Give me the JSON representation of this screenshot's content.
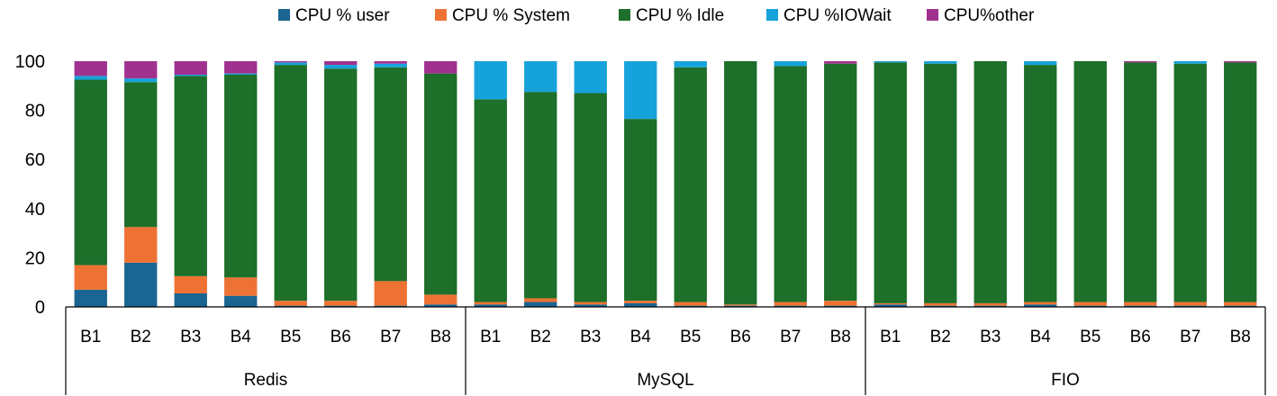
{
  "chart_data": {
    "type": "bar",
    "stacked": true,
    "title": "",
    "xlabel": "",
    "ylabel": "",
    "ylim": [
      0,
      100
    ],
    "yticks": [
      0,
      20,
      40,
      60,
      80,
      100
    ],
    "grid": false,
    "legend_position": "top",
    "groups": [
      {
        "name": "Redis",
        "categories": [
          "B1",
          "B2",
          "B3",
          "B4",
          "B5",
          "B6",
          "B7",
          "B8"
        ]
      },
      {
        "name": "MySQL",
        "categories": [
          "B1",
          "B2",
          "B3",
          "B4",
          "B5",
          "B6",
          "B7",
          "B8"
        ]
      },
      {
        "name": "FIO",
        "categories": [
          "B1",
          "B2",
          "B3",
          "B4",
          "B5",
          "B6",
          "B7",
          "B8"
        ]
      }
    ],
    "series": [
      {
        "name": "CPU % user",
        "color": "#1b6592",
        "values": [
          7,
          18,
          5.5,
          4.5,
          0.5,
          0.5,
          0.5,
          1,
          1,
          2,
          1,
          1.5,
          0.5,
          0.5,
          0.5,
          0.5,
          1,
          0.5,
          0.5,
          1,
          0.5,
          0.5,
          0.5,
          0.5
        ]
      },
      {
        "name": "CPU % System",
        "color": "#ee7233",
        "values": [
          10,
          14.5,
          7,
          7.5,
          2,
          2,
          10,
          4,
          1,
          1.5,
          1,
          1,
          1.5,
          0.5,
          1.5,
          2,
          0.5,
          1,
          1,
          1,
          1.5,
          1.5,
          1.5,
          1.5
        ]
      },
      {
        "name": "CPU % Idle",
        "color": "#1d6f2a",
        "values": [
          75.5,
          59,
          81.5,
          82.5,
          96,
          94.5,
          87,
          90,
          82.5,
          84,
          85,
          74,
          95.5,
          99,
          96,
          96.5,
          98,
          97.5,
          98.5,
          96.5,
          98,
          97.5,
          97,
          97.5
        ]
      },
      {
        "name": "CPU %IOWait",
        "color": "#16a2da",
        "values": [
          1.5,
          1.5,
          0.5,
          0.5,
          1,
          1.5,
          1.5,
          0,
          15.5,
          12.5,
          13,
          23.5,
          2.5,
          0,
          2,
          0,
          0.5,
          1,
          0,
          1.5,
          0,
          0,
          1,
          0
        ]
      },
      {
        "name": "CPU%other",
        "color": "#a1318f",
        "values": [
          6,
          7,
          5.5,
          5,
          0.5,
          1.5,
          1,
          5,
          0,
          0,
          0,
          0,
          0,
          0,
          0,
          1,
          0,
          0,
          0,
          0,
          0,
          0.5,
          0,
          0.5
        ]
      }
    ]
  }
}
